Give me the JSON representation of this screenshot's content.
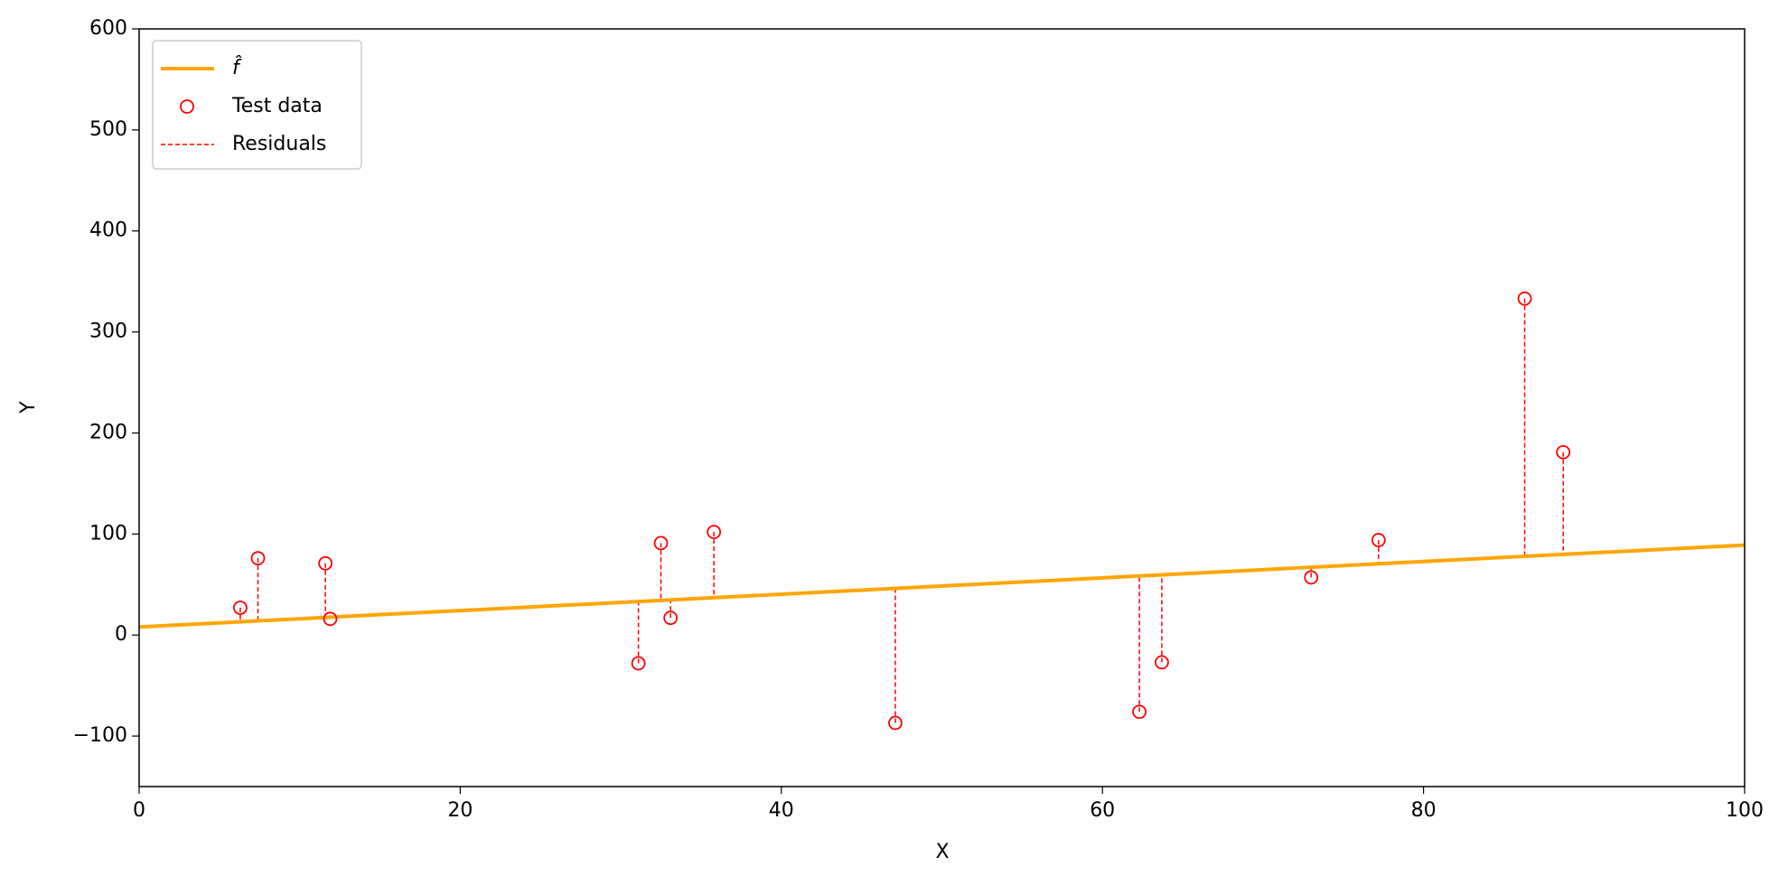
{
  "chart_data": {
    "type": "scatter",
    "xlabel": "X",
    "ylabel": "Y",
    "xlim": [
      0,
      100
    ],
    "ylim": [
      -150,
      600
    ],
    "xticks": [
      0,
      20,
      40,
      60,
      80,
      100
    ],
    "yticks": [
      {
        "value": -100,
        "label": "−100"
      },
      0,
      100,
      200,
      300,
      400,
      500,
      600
    ],
    "legend": "upper left",
    "series": [
      {
        "name": "f̂",
        "type": "line",
        "color": "orange",
        "x": [
          0,
          100
        ],
        "values": [
          8,
          89
        ]
      },
      {
        "name": "Test data",
        "type": "scatter",
        "color": "red",
        "x": [
          6.3,
          7.4,
          11.6,
          11.9,
          31.1,
          32.5,
          33.1,
          35.8,
          47.1,
          62.3,
          63.7,
          73.0,
          77.2,
          86.3,
          88.7
        ],
        "values": [
          27,
          76,
          71,
          16,
          -28,
          91,
          17,
          102,
          -87,
          -76,
          -27,
          57,
          94,
          333,
          181
        ]
      },
      {
        "name": "Residuals",
        "type": "residual",
        "color": "red"
      }
    ]
  }
}
